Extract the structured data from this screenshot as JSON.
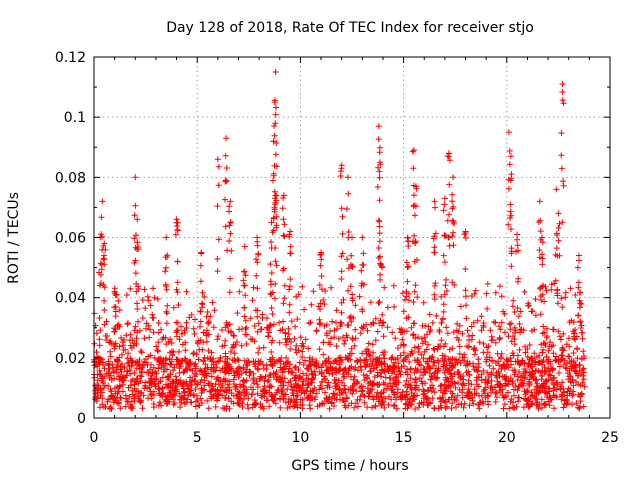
{
  "chart_data": {
    "type": "scatter",
    "title": "Day 128 of 2018, Rate Of TEC Index for receiver stjo",
    "xlabel": "GPS time / hours",
    "ylabel": "ROTI / TECUs",
    "xlim": [
      0,
      25
    ],
    "ylim": [
      0,
      0.12
    ],
    "xticks": [
      0,
      5,
      10,
      15,
      20,
      25
    ],
    "xtick_labels": [
      "0",
      "5",
      "10",
      "15",
      "20",
      "25"
    ],
    "yticks": [
      0,
      0.02,
      0.04,
      0.06,
      0.08,
      0.1,
      0.12
    ],
    "ytick_labels": [
      "0",
      "0.02",
      "0.04",
      "0.06",
      "0.08",
      "0.1",
      "0.12"
    ],
    "grid": true,
    "marker": "+",
    "color": "#ff0000",
    "x_span_hours": [
      0,
      23.8
    ],
    "series": [
      {
        "name": "ROTI",
        "profile_note": "dense band of points 0.002-0.04 TECU/s across the day, with episodic spikes",
        "spikes": [
          {
            "x": 0.3,
            "y": 0.06
          },
          {
            "x": 0.4,
            "y": 0.072
          },
          {
            "x": 0.5,
            "y": 0.058
          },
          {
            "x": 1.0,
            "y": 0.042
          },
          {
            "x": 2.0,
            "y": 0.08
          },
          {
            "x": 2.1,
            "y": 0.066
          },
          {
            "x": 3.5,
            "y": 0.06
          },
          {
            "x": 4.0,
            "y": 0.066
          },
          {
            "x": 5.2,
            "y": 0.055
          },
          {
            "x": 6.0,
            "y": 0.086
          },
          {
            "x": 6.4,
            "y": 0.093
          },
          {
            "x": 6.6,
            "y": 0.072
          },
          {
            "x": 7.3,
            "y": 0.057
          },
          {
            "x": 7.9,
            "y": 0.06
          },
          {
            "x": 8.6,
            "y": 0.065
          },
          {
            "x": 8.8,
            "y": 0.115
          },
          {
            "x": 8.75,
            "y": 0.105
          },
          {
            "x": 8.7,
            "y": 0.092
          },
          {
            "x": 8.8,
            "y": 0.074
          },
          {
            "x": 9.2,
            "y": 0.074
          },
          {
            "x": 9.5,
            "y": 0.062
          },
          {
            "x": 11.0,
            "y": 0.055
          },
          {
            "x": 12.0,
            "y": 0.084
          },
          {
            "x": 12.3,
            "y": 0.08
          },
          {
            "x": 12.5,
            "y": 0.06
          },
          {
            "x": 13.0,
            "y": 0.06
          },
          {
            "x": 13.8,
            "y": 0.097
          },
          {
            "x": 13.85,
            "y": 0.085
          },
          {
            "x": 13.9,
            "y": 0.051
          },
          {
            "x": 15.2,
            "y": 0.06
          },
          {
            "x": 15.5,
            "y": 0.089
          },
          {
            "x": 15.6,
            "y": 0.077
          },
          {
            "x": 16.5,
            "y": 0.072
          },
          {
            "x": 17.0,
            "y": 0.073
          },
          {
            "x": 17.2,
            "y": 0.088
          },
          {
            "x": 17.4,
            "y": 0.08
          },
          {
            "x": 18.0,
            "y": 0.062
          },
          {
            "x": 20.1,
            "y": 0.095
          },
          {
            "x": 20.2,
            "y": 0.087
          },
          {
            "x": 20.5,
            "y": 0.061
          },
          {
            "x": 21.6,
            "y": 0.072
          },
          {
            "x": 21.7,
            "y": 0.06
          },
          {
            "x": 22.4,
            "y": 0.076
          },
          {
            "x": 22.5,
            "y": 0.068
          },
          {
            "x": 22.7,
            "y": 0.111
          },
          {
            "x": 23.5,
            "y": 0.054
          }
        ]
      }
    ]
  }
}
